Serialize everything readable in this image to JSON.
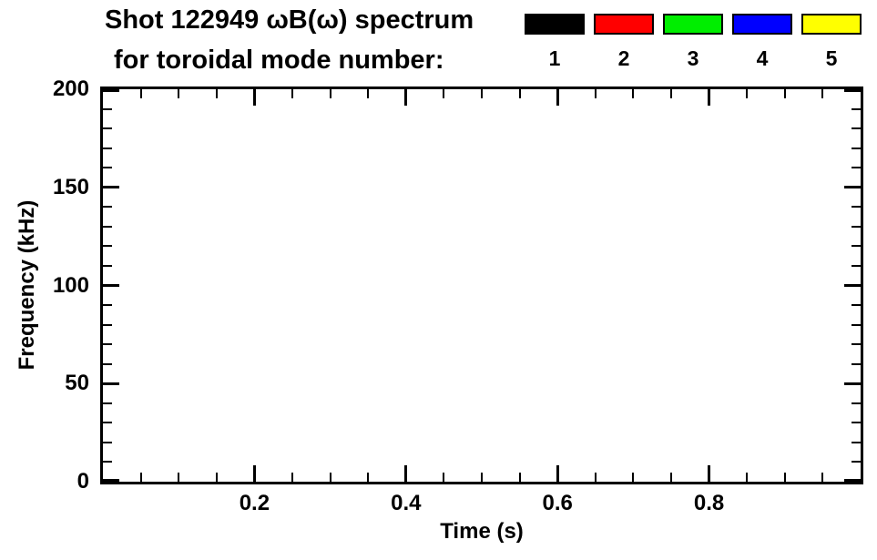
{
  "chart_data": {
    "type": "spectrogram",
    "title_line1": "Shot 122949 ωB(ω) spectrum",
    "title_line2": "for toroidal mode number:",
    "xlabel": "Time (s)",
    "ylabel": "Frequency (kHz)",
    "xlim": [
      0.0,
      1.0
    ],
    "ylim": [
      0,
      200
    ],
    "x_major_ticks": [
      0.2,
      0.4,
      0.6,
      0.8
    ],
    "x_major_labels": [
      "0.2",
      "0.4",
      "0.6",
      "0.8"
    ],
    "x_minor_step": 0.05,
    "y_major_ticks": [
      0,
      50,
      100,
      150,
      200
    ],
    "y_major_labels": [
      "0",
      "50",
      "100",
      "150",
      "200"
    ],
    "y_minor_step": 10,
    "grid": false,
    "plot_background": "#ffffff",
    "frame_color": "#000000",
    "text_color": "#000000",
    "series": [],
    "legend": {
      "position": "top-right",
      "entries": [
        {
          "label": "1",
          "color": "#000000"
        },
        {
          "label": "2",
          "color": "#ff0000"
        },
        {
          "label": "3",
          "color": "#00ee00"
        },
        {
          "label": "4",
          "color": "#0000ff"
        },
        {
          "label": "5",
          "color": "#ffff00"
        }
      ]
    }
  }
}
